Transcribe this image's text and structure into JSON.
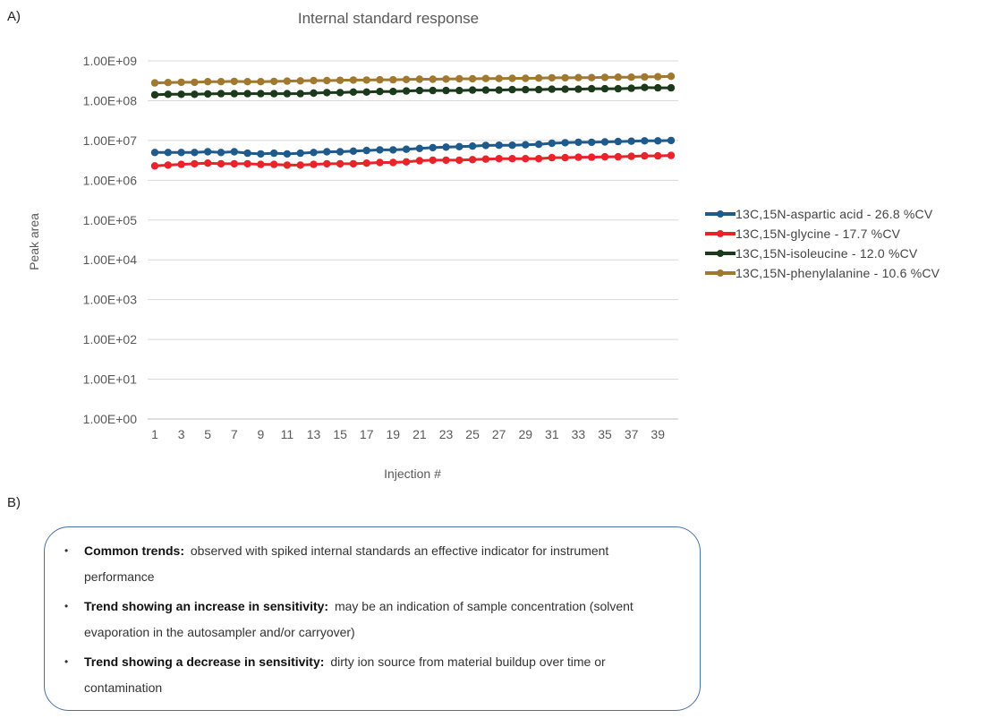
{
  "panels": {
    "a_label": "A)",
    "b_label": "B)"
  },
  "chart_data": {
    "type": "line",
    "title": "Internal standard response",
    "xlabel": "Injection #",
    "ylabel": "Peak area",
    "y_scale": "log",
    "ylim": [
      1,
      1000000000
    ],
    "yticks": [
      "1.00E+00",
      "1.00E+01",
      "1.00E+02",
      "1.00E+03",
      "1.00E+04",
      "1.00E+05",
      "1.00E+06",
      "1.00E+07",
      "1.00E+08",
      "1.00E+09"
    ],
    "xticks": [
      "1",
      "3",
      "5",
      "7",
      "9",
      "11",
      "13",
      "15",
      "17",
      "19",
      "21",
      "23",
      "25",
      "27",
      "29",
      "31",
      "33",
      "35",
      "37",
      "39"
    ],
    "x": [
      1,
      2,
      3,
      4,
      5,
      6,
      7,
      8,
      9,
      10,
      11,
      12,
      13,
      14,
      15,
      16,
      17,
      18,
      19,
      20,
      21,
      22,
      23,
      24,
      25,
      26,
      27,
      28,
      29,
      30,
      31,
      32,
      33,
      34,
      35,
      36,
      37,
      38,
      39,
      40
    ],
    "grid": "horizontal",
    "legend_position": "right",
    "series": [
      {
        "name": "13C,15N-aspartic acid - 26.8 %CV",
        "color": "#1f5a8c",
        "values": [
          5000000,
          5000000,
          5000000,
          5000000,
          5200000,
          5000000,
          5200000,
          4800000,
          4600000,
          4800000,
          4600000,
          4800000,
          5000000,
          5200000,
          5200000,
          5400000,
          5600000,
          5800000,
          5800000,
          6000000,
          6300000,
          6600000,
          6800000,
          7000000,
          7200000,
          7500000,
          7600000,
          7600000,
          7800000,
          8000000,
          8500000,
          8800000,
          9000000,
          9000000,
          9200000,
          9400000,
          9600000,
          9800000,
          9800000,
          10000000
        ]
      },
      {
        "name": "13C,15N-glycine - 17.7 %CV",
        "color": "#e8242a",
        "values": [
          2300000,
          2400000,
          2500000,
          2600000,
          2700000,
          2600000,
          2600000,
          2600000,
          2500000,
          2500000,
          2400000,
          2400000,
          2500000,
          2600000,
          2600000,
          2600000,
          2700000,
          2800000,
          2800000,
          2900000,
          3100000,
          3200000,
          3200000,
          3200000,
          3300000,
          3400000,
          3500000,
          3500000,
          3500000,
          3500000,
          3700000,
          3700000,
          3800000,
          3800000,
          3900000,
          3900000,
          4000000,
          4100000,
          4100000,
          4200000
        ]
      },
      {
        "name": "13C,15N-isoleucine - 12.0 %CV",
        "color": "#1b3a1c",
        "values": [
          140000000,
          145000000,
          145000000,
          145000000,
          148000000,
          150000000,
          150000000,
          150000000,
          150000000,
          150000000,
          150000000,
          150000000,
          155000000,
          160000000,
          160000000,
          165000000,
          165000000,
          170000000,
          170000000,
          175000000,
          180000000,
          180000000,
          180000000,
          180000000,
          185000000,
          185000000,
          185000000,
          190000000,
          190000000,
          190000000,
          195000000,
          195000000,
          195000000,
          200000000,
          200000000,
          200000000,
          205000000,
          215000000,
          210000000,
          210000000
        ]
      },
      {
        "name": "13C,15N-phenylalanine - 10.6 %CV",
        "color": "#a07830",
        "values": [
          280000000,
          285000000,
          290000000,
          290000000,
          300000000,
          300000000,
          305000000,
          300000000,
          300000000,
          305000000,
          310000000,
          315000000,
          320000000,
          320000000,
          325000000,
          330000000,
          330000000,
          335000000,
          335000000,
          340000000,
          345000000,
          345000000,
          350000000,
          355000000,
          355000000,
          360000000,
          360000000,
          365000000,
          365000000,
          370000000,
          375000000,
          375000000,
          380000000,
          380000000,
          385000000,
          390000000,
          390000000,
          395000000,
          400000000,
          410000000
        ]
      }
    ]
  },
  "notes": [
    {
      "bold": "Common trends:",
      "text": "observed with spiked internal standards an effective indicator for instrument performance"
    },
    {
      "bold": "Trend showing an increase in sensitivity:",
      "text": "may be an indication of sample concentration (solvent evaporation in the autosampler and/or carryover)"
    },
    {
      "bold": "Trend showing a decrease in sensitivity:",
      "text": "dirty ion source from material buildup over time or contamination"
    }
  ]
}
